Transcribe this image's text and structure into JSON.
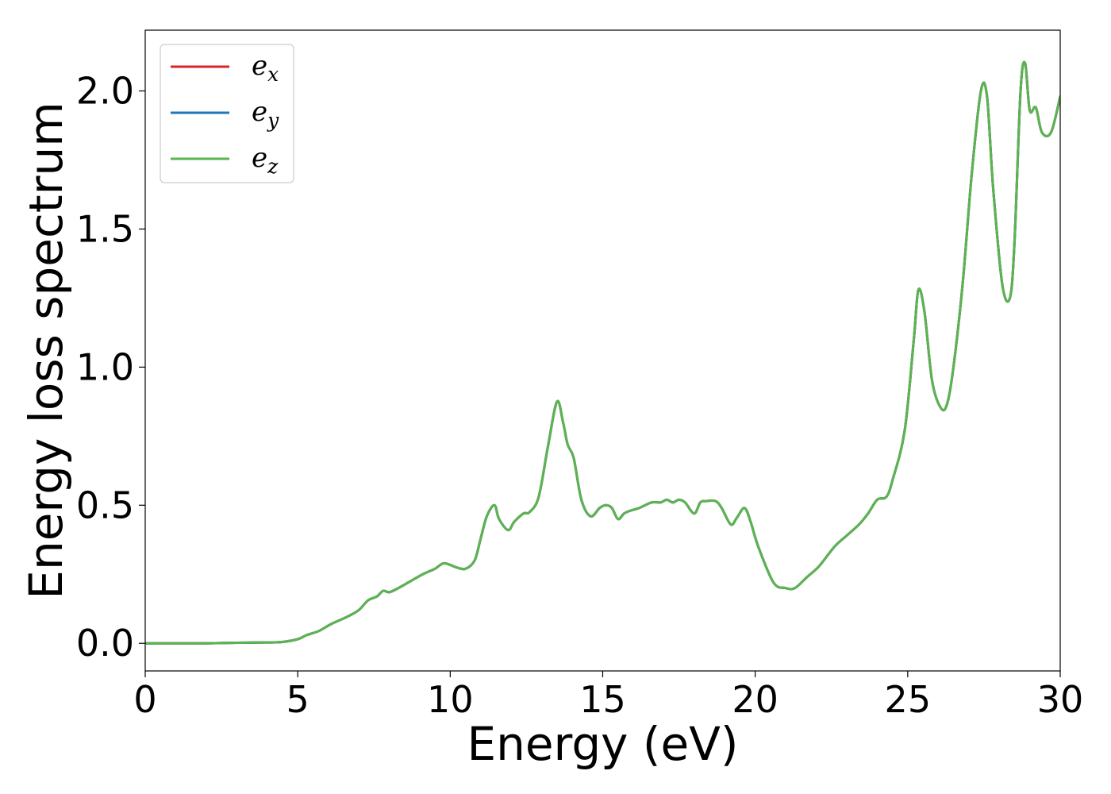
{
  "chart_data": {
    "type": "line",
    "title": "",
    "xlabel": "Energy (eV)",
    "ylabel": "Energy loss spectrum",
    "xlim": [
      0,
      30
    ],
    "ylim": [
      -0.1,
      2.22
    ],
    "xticks": [
      0,
      5,
      10,
      15,
      20,
      25,
      30
    ],
    "xtick_labels": [
      "0",
      "5",
      "10",
      "15",
      "20",
      "25",
      "30"
    ],
    "yticks": [
      0.0,
      0.5,
      1.0,
      1.5,
      2.0
    ],
    "ytick_labels": [
      "0.0",
      "0.5",
      "1.0",
      "1.5",
      "2.0"
    ],
    "grid": false,
    "legend_position": "top-left",
    "series": [
      {
        "name": "e_x",
        "legend_base": "e",
        "legend_sub": "x",
        "color": "#d62728",
        "x": [
          0,
          2,
          3,
          4,
          4.5,
          5,
          5.3,
          5.7,
          6.1,
          6.6,
          7.0,
          7.3,
          7.6,
          7.8,
          8.0,
          8.3,
          8.7,
          9.1,
          9.5,
          9.8,
          10.2,
          10.5,
          10.8,
          11.0,
          11.2,
          11.45,
          11.6,
          11.9,
          12.1,
          12.4,
          12.6,
          12.9,
          13.2,
          13.5,
          13.7,
          13.85,
          14.05,
          14.3,
          14.6,
          14.9,
          15.1,
          15.3,
          15.5,
          15.7,
          15.9,
          16.2,
          16.6,
          16.9,
          17.1,
          17.3,
          17.5,
          17.7,
          18.0,
          18.2,
          18.4,
          18.7,
          18.9,
          19.2,
          19.4,
          19.65,
          19.85,
          20.1,
          20.6,
          21.0,
          21.3,
          21.7,
          22.1,
          22.6,
          23.0,
          23.4,
          23.7,
          24.0,
          24.3,
          24.5,
          24.9,
          25.2,
          25.35,
          25.55,
          25.8,
          26.1,
          26.3,
          26.5,
          26.8,
          27.1,
          27.4,
          27.6,
          27.8,
          28.1,
          28.35,
          28.5,
          28.7,
          28.85,
          29.0,
          29.2,
          29.4,
          29.7,
          30.0
        ],
        "y": [
          0.0,
          0.0,
          0.002,
          0.003,
          0.005,
          0.015,
          0.03,
          0.045,
          0.07,
          0.095,
          0.12,
          0.155,
          0.17,
          0.19,
          0.185,
          0.2,
          0.225,
          0.25,
          0.27,
          0.29,
          0.275,
          0.27,
          0.3,
          0.38,
          0.46,
          0.5,
          0.45,
          0.41,
          0.44,
          0.47,
          0.475,
          0.53,
          0.71,
          0.875,
          0.8,
          0.72,
          0.67,
          0.52,
          0.46,
          0.49,
          0.5,
          0.49,
          0.45,
          0.47,
          0.48,
          0.49,
          0.51,
          0.51,
          0.52,
          0.51,
          0.52,
          0.51,
          0.47,
          0.51,
          0.515,
          0.515,
          0.49,
          0.43,
          0.455,
          0.49,
          0.44,
          0.35,
          0.22,
          0.2,
          0.2,
          0.24,
          0.28,
          0.35,
          0.39,
          0.43,
          0.47,
          0.52,
          0.53,
          0.59,
          0.77,
          1.1,
          1.28,
          1.2,
          0.95,
          0.85,
          0.87,
          1.0,
          1.3,
          1.7,
          2.0,
          1.98,
          1.65,
          1.3,
          1.25,
          1.45,
          2.0,
          2.1,
          1.93,
          1.94,
          1.85,
          1.85,
          1.98
        ]
      },
      {
        "name": "e_y",
        "legend_base": "e",
        "legend_sub": "y",
        "color": "#1f77b4",
        "x": [
          0,
          2,
          3,
          4,
          4.5,
          5,
          5.3,
          5.7,
          6.1,
          6.6,
          7.0,
          7.3,
          7.6,
          7.8,
          8.0,
          8.3,
          8.7,
          9.1,
          9.5,
          9.8,
          10.2,
          10.5,
          10.8,
          11.0,
          11.2,
          11.45,
          11.6,
          11.9,
          12.1,
          12.4,
          12.6,
          12.9,
          13.2,
          13.5,
          13.7,
          13.85,
          14.05,
          14.3,
          14.6,
          14.9,
          15.1,
          15.3,
          15.5,
          15.7,
          15.9,
          16.2,
          16.6,
          16.9,
          17.1,
          17.3,
          17.5,
          17.7,
          18.0,
          18.2,
          18.4,
          18.7,
          18.9,
          19.2,
          19.4,
          19.65,
          19.85,
          20.1,
          20.6,
          21.0,
          21.3,
          21.7,
          22.1,
          22.6,
          23.0,
          23.4,
          23.7,
          24.0,
          24.3,
          24.5,
          24.9,
          25.2,
          25.35,
          25.55,
          25.8,
          26.1,
          26.3,
          26.5,
          26.8,
          27.1,
          27.4,
          27.6,
          27.8,
          28.1,
          28.35,
          28.5,
          28.7,
          28.85,
          29.0,
          29.2,
          29.4,
          29.7,
          30.0
        ],
        "y": [
          0.0,
          0.0,
          0.002,
          0.003,
          0.005,
          0.015,
          0.03,
          0.045,
          0.07,
          0.095,
          0.12,
          0.155,
          0.17,
          0.19,
          0.185,
          0.2,
          0.225,
          0.25,
          0.27,
          0.29,
          0.275,
          0.27,
          0.3,
          0.38,
          0.46,
          0.5,
          0.45,
          0.41,
          0.44,
          0.47,
          0.475,
          0.53,
          0.71,
          0.875,
          0.8,
          0.72,
          0.67,
          0.52,
          0.46,
          0.49,
          0.5,
          0.49,
          0.45,
          0.47,
          0.48,
          0.49,
          0.51,
          0.51,
          0.52,
          0.51,
          0.52,
          0.51,
          0.47,
          0.51,
          0.515,
          0.515,
          0.49,
          0.43,
          0.455,
          0.49,
          0.44,
          0.35,
          0.22,
          0.2,
          0.2,
          0.24,
          0.28,
          0.35,
          0.39,
          0.43,
          0.47,
          0.52,
          0.53,
          0.59,
          0.77,
          1.1,
          1.28,
          1.2,
          0.95,
          0.85,
          0.87,
          1.0,
          1.3,
          1.7,
          2.0,
          1.98,
          1.65,
          1.3,
          1.25,
          1.45,
          2.0,
          2.1,
          1.93,
          1.94,
          1.85,
          1.85,
          1.98
        ]
      },
      {
        "name": "e_z",
        "legend_base": "e",
        "legend_sub": "z",
        "color": "#5bb450",
        "x": [
          0,
          2,
          3,
          4,
          4.5,
          5,
          5.3,
          5.7,
          6.1,
          6.6,
          7.0,
          7.3,
          7.6,
          7.8,
          8.0,
          8.3,
          8.7,
          9.1,
          9.5,
          9.8,
          10.2,
          10.5,
          10.8,
          11.0,
          11.2,
          11.45,
          11.6,
          11.9,
          12.1,
          12.4,
          12.6,
          12.9,
          13.2,
          13.5,
          13.7,
          13.85,
          14.05,
          14.3,
          14.6,
          14.9,
          15.1,
          15.3,
          15.5,
          15.7,
          15.9,
          16.2,
          16.6,
          16.9,
          17.1,
          17.3,
          17.5,
          17.7,
          18.0,
          18.2,
          18.4,
          18.7,
          18.9,
          19.2,
          19.4,
          19.65,
          19.85,
          20.1,
          20.6,
          21.0,
          21.3,
          21.7,
          22.1,
          22.6,
          23.0,
          23.4,
          23.7,
          24.0,
          24.3,
          24.5,
          24.9,
          25.2,
          25.35,
          25.55,
          25.8,
          26.1,
          26.3,
          26.5,
          26.8,
          27.1,
          27.4,
          27.6,
          27.8,
          28.1,
          28.35,
          28.5,
          28.7,
          28.85,
          29.0,
          29.2,
          29.4,
          29.7,
          30.0
        ],
        "y": [
          0.0,
          0.0,
          0.002,
          0.003,
          0.005,
          0.015,
          0.03,
          0.045,
          0.07,
          0.095,
          0.12,
          0.155,
          0.17,
          0.19,
          0.185,
          0.2,
          0.225,
          0.25,
          0.27,
          0.29,
          0.275,
          0.27,
          0.3,
          0.38,
          0.46,
          0.5,
          0.45,
          0.41,
          0.44,
          0.47,
          0.475,
          0.53,
          0.71,
          0.875,
          0.8,
          0.72,
          0.67,
          0.52,
          0.46,
          0.49,
          0.5,
          0.49,
          0.45,
          0.47,
          0.48,
          0.49,
          0.51,
          0.51,
          0.52,
          0.51,
          0.52,
          0.51,
          0.47,
          0.51,
          0.515,
          0.515,
          0.49,
          0.43,
          0.455,
          0.49,
          0.44,
          0.35,
          0.22,
          0.2,
          0.2,
          0.24,
          0.28,
          0.35,
          0.39,
          0.43,
          0.47,
          0.52,
          0.53,
          0.59,
          0.77,
          1.1,
          1.28,
          1.2,
          0.95,
          0.85,
          0.87,
          1.0,
          1.3,
          1.7,
          2.0,
          1.98,
          1.65,
          1.3,
          1.25,
          1.45,
          2.0,
          2.1,
          1.93,
          1.94,
          1.85,
          1.85,
          1.98
        ]
      }
    ]
  }
}
